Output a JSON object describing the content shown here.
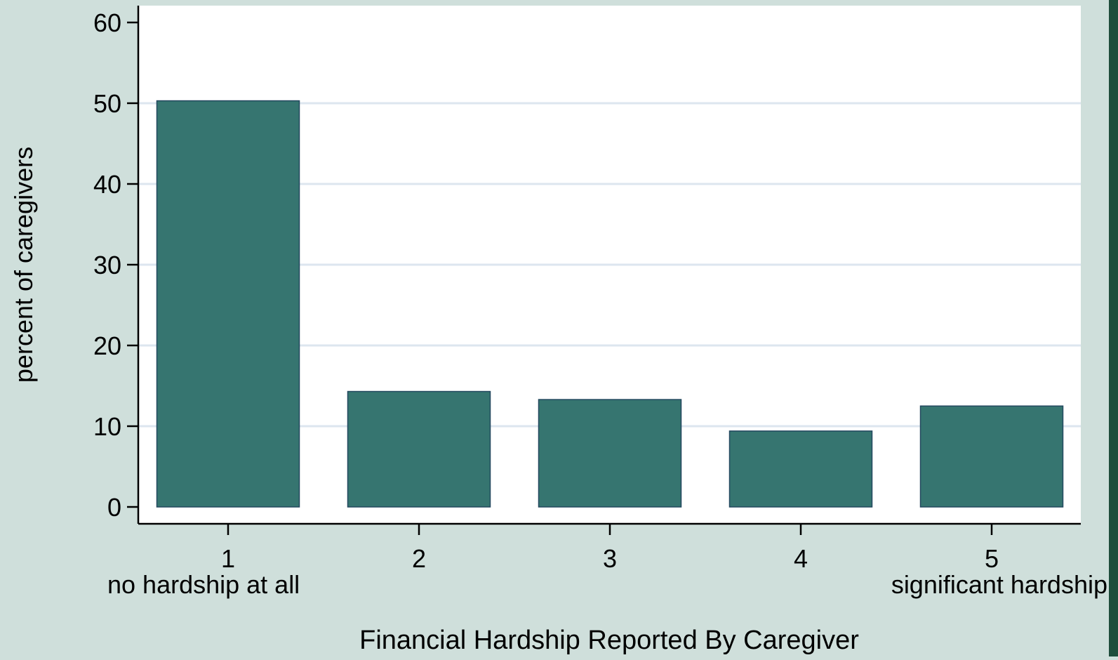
{
  "chart_data": {
    "type": "bar",
    "categories": [
      "1",
      "2",
      "3",
      "4",
      "5"
    ],
    "category_sublabels": [
      "no hardship at all",
      "",
      "",
      "",
      "significant hardship"
    ],
    "values": [
      50.3,
      14.3,
      13.3,
      9.4,
      12.5
    ],
    "title": "",
    "xlabel": "Financial Hardship Reported By Caregiver",
    "ylabel": "percent of caregivers",
    "ylim": [
      0,
      60
    ],
    "yticks": [
      0,
      10,
      20,
      30,
      40,
      50,
      60
    ],
    "grid": true,
    "colors": {
      "bar_fill": "#367570",
      "bar_stroke": "#23485f",
      "plot_background": "#ffffff",
      "page_background": "#cfdfdb",
      "grid_line": "#dde6ef",
      "axis_line": "#000000",
      "right_strip": "#1f4d3b"
    }
  }
}
